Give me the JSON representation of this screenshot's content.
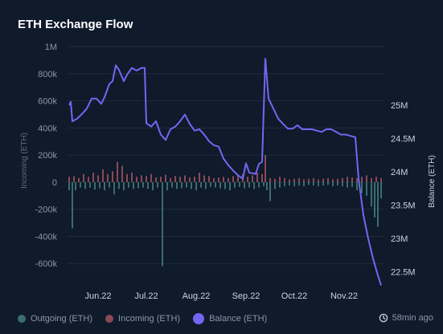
{
  "title": "ETH Exchange Flow",
  "updated": "58min ago",
  "legend": {
    "outgoing": "Outgoing (ETH)",
    "incoming": "Incoming (ETH)",
    "balance": "Balance (ETH)"
  },
  "colors": {
    "background": "#0f1a2b",
    "outgoing": "#3b6e6a",
    "incoming": "#8a4a55",
    "balance": "#7466f2",
    "grid": "#1f2c3e",
    "tick": "#8a97aa"
  },
  "chart_data": {
    "type": "bar+line",
    "x_range": [
      "2022-05-13",
      "2022-11-26"
    ],
    "x_ticks": [
      {
        "label": "Jun.22",
        "date": "2022-06-01"
      },
      {
        "label": "Jul.22",
        "date": "2022-07-01"
      },
      {
        "label": "Aug.22",
        "date": "2022-08-01"
      },
      {
        "label": "Sep.22",
        "date": "2022-09-01"
      },
      {
        "label": "Oct.22",
        "date": "2022-10-01"
      },
      {
        "label": "Nov.22",
        "date": "2022-11-01"
      }
    ],
    "y_left": {
      "label": "Incoming (ETH)",
      "range": [
        -800000,
        1000000
      ],
      "ticks": [
        {
          "v": 1000000,
          "label": "1M"
        },
        {
          "v": 800000,
          "label": "800k"
        },
        {
          "v": 600000,
          "label": "600k"
        },
        {
          "v": 400000,
          "label": "400k"
        },
        {
          "v": 200000,
          "label": "200k"
        },
        {
          "v": 0,
          "label": "0"
        },
        {
          "v": -200000,
          "label": "-200k"
        },
        {
          "v": -400000,
          "label": "-400k"
        },
        {
          "v": -600000,
          "label": "-600k"
        }
      ]
    },
    "y_right": {
      "label": "Balance (ETH)",
      "range": [
        22220000,
        25880000
      ],
      "ticks": [
        {
          "v": 25000000,
          "label": "25M"
        },
        {
          "v": 24500000,
          "label": "24.5M"
        },
        {
          "v": 24000000,
          "label": "24M"
        },
        {
          "v": 23500000,
          "label": "23.5M"
        },
        {
          "v": 23000000,
          "label": "23M"
        },
        {
          "v": 22500000,
          "label": "22.5M"
        }
      ]
    },
    "incoming": [
      [
        "2022-05-14",
        40000
      ],
      [
        "2022-05-17",
        45000
      ],
      [
        "2022-05-20",
        30000
      ],
      [
        "2022-05-23",
        60000
      ],
      [
        "2022-05-26",
        40000
      ],
      [
        "2022-05-29",
        70000
      ],
      [
        "2022-06-01",
        50000
      ],
      [
        "2022-06-04",
        95000
      ],
      [
        "2022-06-07",
        60000
      ],
      [
        "2022-06-10",
        80000
      ],
      [
        "2022-06-13",
        150000
      ],
      [
        "2022-06-16",
        120000
      ],
      [
        "2022-06-19",
        60000
      ],
      [
        "2022-06-22",
        70000
      ],
      [
        "2022-06-25",
        40000
      ],
      [
        "2022-06-28",
        50000
      ],
      [
        "2022-07-01",
        45000
      ],
      [
        "2022-07-04",
        60000
      ],
      [
        "2022-07-07",
        35000
      ],
      [
        "2022-07-10",
        40000
      ],
      [
        "2022-07-13",
        55000
      ],
      [
        "2022-07-16",
        30000
      ],
      [
        "2022-07-19",
        45000
      ],
      [
        "2022-07-22",
        40000
      ],
      [
        "2022-07-25",
        50000
      ],
      [
        "2022-07-28",
        35000
      ],
      [
        "2022-07-31",
        40000
      ],
      [
        "2022-08-03",
        70000
      ],
      [
        "2022-08-06",
        50000
      ],
      [
        "2022-08-09",
        45000
      ],
      [
        "2022-08-12",
        30000
      ],
      [
        "2022-08-15",
        35000
      ],
      [
        "2022-08-18",
        40000
      ],
      [
        "2022-08-21",
        30000
      ],
      [
        "2022-08-24",
        45000
      ],
      [
        "2022-08-27",
        55000
      ],
      [
        "2022-08-30",
        60000
      ],
      [
        "2022-09-02",
        40000
      ],
      [
        "2022-09-05",
        50000
      ],
      [
        "2022-09-08",
        70000
      ],
      [
        "2022-09-11",
        60000
      ],
      [
        "2022-09-13",
        200000
      ],
      [
        "2022-09-16",
        30000
      ],
      [
        "2022-09-19",
        25000
      ],
      [
        "2022-09-22",
        40000
      ],
      [
        "2022-09-25",
        30000
      ],
      [
        "2022-09-28",
        20000
      ],
      [
        "2022-10-01",
        25000
      ],
      [
        "2022-10-04",
        30000
      ],
      [
        "2022-10-07",
        20000
      ],
      [
        "2022-10-10",
        25000
      ],
      [
        "2022-10-13",
        30000
      ],
      [
        "2022-10-16",
        20000
      ],
      [
        "2022-10-19",
        25000
      ],
      [
        "2022-10-22",
        30000
      ],
      [
        "2022-10-25",
        20000
      ],
      [
        "2022-10-28",
        25000
      ],
      [
        "2022-10-31",
        30000
      ],
      [
        "2022-11-03",
        40000
      ],
      [
        "2022-11-06",
        35000
      ],
      [
        "2022-11-09",
        30000
      ],
      [
        "2022-11-12",
        40000
      ],
      [
        "2022-11-15",
        50000
      ],
      [
        "2022-11-18",
        30000
      ],
      [
        "2022-11-21",
        40000
      ],
      [
        "2022-11-24",
        30000
      ]
    ],
    "outgoing": [
      [
        "2022-05-14",
        -60000
      ],
      [
        "2022-05-16",
        -340000
      ],
      [
        "2022-05-18",
        -60000
      ],
      [
        "2022-05-21",
        -40000
      ],
      [
        "2022-05-24",
        -50000
      ],
      [
        "2022-05-27",
        -40000
      ],
      [
        "2022-05-30",
        -55000
      ],
      [
        "2022-06-02",
        -45000
      ],
      [
        "2022-06-05",
        -60000
      ],
      [
        "2022-06-08",
        -40000
      ],
      [
        "2022-06-11",
        -90000
      ],
      [
        "2022-06-14",
        -50000
      ],
      [
        "2022-06-17",
        -60000
      ],
      [
        "2022-06-20",
        -40000
      ],
      [
        "2022-06-23",
        -50000
      ],
      [
        "2022-06-26",
        -45000
      ],
      [
        "2022-06-29",
        -40000
      ],
      [
        "2022-07-02",
        -50000
      ],
      [
        "2022-07-05",
        -60000
      ],
      [
        "2022-07-08",
        -40000
      ],
      [
        "2022-07-11",
        -620000
      ],
      [
        "2022-07-14",
        -60000
      ],
      [
        "2022-07-17",
        -40000
      ],
      [
        "2022-07-20",
        -50000
      ],
      [
        "2022-07-23",
        -45000
      ],
      [
        "2022-07-26",
        -40000
      ],
      [
        "2022-07-29",
        -50000
      ],
      [
        "2022-08-01",
        -60000
      ],
      [
        "2022-08-04",
        -40000
      ],
      [
        "2022-08-07",
        -50000
      ],
      [
        "2022-08-10",
        -35000
      ],
      [
        "2022-08-13",
        -40000
      ],
      [
        "2022-08-16",
        -45000
      ],
      [
        "2022-08-19",
        -50000
      ],
      [
        "2022-08-22",
        -60000
      ],
      [
        "2022-08-25",
        -40000
      ],
      [
        "2022-08-28",
        -35000
      ],
      [
        "2022-08-31",
        -45000
      ],
      [
        "2022-09-03",
        -40000
      ],
      [
        "2022-09-06",
        -50000
      ],
      [
        "2022-09-09",
        -40000
      ],
      [
        "2022-09-12",
        -30000
      ],
      [
        "2022-09-14",
        -60000
      ],
      [
        "2022-09-16",
        -140000
      ],
      [
        "2022-09-19",
        -50000
      ],
      [
        "2022-09-22",
        -40000
      ],
      [
        "2022-09-25",
        -30000
      ],
      [
        "2022-09-28",
        -25000
      ],
      [
        "2022-10-01",
        -30000
      ],
      [
        "2022-10-04",
        -25000
      ],
      [
        "2022-10-07",
        -30000
      ],
      [
        "2022-10-10",
        -20000
      ],
      [
        "2022-10-13",
        -25000
      ],
      [
        "2022-10-16",
        -30000
      ],
      [
        "2022-10-19",
        -25000
      ],
      [
        "2022-10-22",
        -20000
      ],
      [
        "2022-10-25",
        -30000
      ],
      [
        "2022-10-28",
        -25000
      ],
      [
        "2022-10-31",
        -30000
      ],
      [
        "2022-11-03",
        -40000
      ],
      [
        "2022-11-06",
        -35000
      ],
      [
        "2022-11-09",
        -60000
      ],
      [
        "2022-11-12",
        -80000
      ],
      [
        "2022-11-15",
        -100000
      ],
      [
        "2022-11-18",
        -180000
      ],
      [
        "2022-11-20",
        -260000
      ],
      [
        "2022-11-22",
        -330000
      ],
      [
        "2022-11-24",
        -120000
      ]
    ],
    "balance": [
      [
        "2022-05-14",
        25000000
      ],
      [
        "2022-05-15",
        25050000
      ],
      [
        "2022-05-16",
        24760000
      ],
      [
        "2022-05-19",
        24800000
      ],
      [
        "2022-05-22",
        24870000
      ],
      [
        "2022-05-25",
        24950000
      ],
      [
        "2022-05-28",
        25100000
      ],
      [
        "2022-05-31",
        25100000
      ],
      [
        "2022-06-03",
        25020000
      ],
      [
        "2022-06-05",
        25120000
      ],
      [
        "2022-06-08",
        25320000
      ],
      [
        "2022-06-10",
        25360000
      ],
      [
        "2022-06-12",
        25600000
      ],
      [
        "2022-06-14",
        25530000
      ],
      [
        "2022-06-17",
        25360000
      ],
      [
        "2022-06-19",
        25460000
      ],
      [
        "2022-06-22",
        25560000
      ],
      [
        "2022-06-25",
        25520000
      ],
      [
        "2022-06-28",
        25560000
      ],
      [
        "2022-06-30",
        25560000
      ],
      [
        "2022-07-01",
        24730000
      ],
      [
        "2022-07-04",
        24680000
      ],
      [
        "2022-07-07",
        24760000
      ],
      [
        "2022-07-10",
        24560000
      ],
      [
        "2022-07-13",
        24480000
      ],
      [
        "2022-07-16",
        24640000
      ],
      [
        "2022-07-19",
        24680000
      ],
      [
        "2022-07-22",
        24760000
      ],
      [
        "2022-07-25",
        24860000
      ],
      [
        "2022-07-28",
        24720000
      ],
      [
        "2022-07-31",
        24620000
      ],
      [
        "2022-08-03",
        24640000
      ],
      [
        "2022-08-06",
        24560000
      ],
      [
        "2022-08-09",
        24460000
      ],
      [
        "2022-08-12",
        24400000
      ],
      [
        "2022-08-15",
        24380000
      ],
      [
        "2022-08-18",
        24200000
      ],
      [
        "2022-08-21",
        24100000
      ],
      [
        "2022-08-24",
        24020000
      ],
      [
        "2022-08-27",
        23950000
      ],
      [
        "2022-08-30",
        23900000
      ],
      [
        "2022-09-01",
        24130000
      ],
      [
        "2022-09-03",
        23990000
      ],
      [
        "2022-09-05",
        23980000
      ],
      [
        "2022-09-07",
        23970000
      ],
      [
        "2022-09-09",
        24120000
      ],
      [
        "2022-09-11",
        24150000
      ],
      [
        "2022-09-13",
        25700000
      ],
      [
        "2022-09-15",
        25100000
      ],
      [
        "2022-09-18",
        24950000
      ],
      [
        "2022-09-21",
        24800000
      ],
      [
        "2022-09-24",
        24720000
      ],
      [
        "2022-09-27",
        24650000
      ],
      [
        "2022-09-30",
        24650000
      ],
      [
        "2022-10-03",
        24700000
      ],
      [
        "2022-10-06",
        24640000
      ],
      [
        "2022-10-09",
        24640000
      ],
      [
        "2022-10-12",
        24640000
      ],
      [
        "2022-10-15",
        24620000
      ],
      [
        "2022-10-18",
        24600000
      ],
      [
        "2022-10-21",
        24640000
      ],
      [
        "2022-10-24",
        24640000
      ],
      [
        "2022-10-27",
        24600000
      ],
      [
        "2022-10-30",
        24560000
      ],
      [
        "2022-11-02",
        24560000
      ],
      [
        "2022-11-05",
        24540000
      ],
      [
        "2022-11-08",
        24520000
      ],
      [
        "2022-11-10",
        23900000
      ],
      [
        "2022-11-13",
        23350000
      ],
      [
        "2022-11-16",
        23000000
      ],
      [
        "2022-11-19",
        22700000
      ],
      [
        "2022-11-22",
        22450000
      ],
      [
        "2022-11-24",
        22300000
      ]
    ]
  }
}
